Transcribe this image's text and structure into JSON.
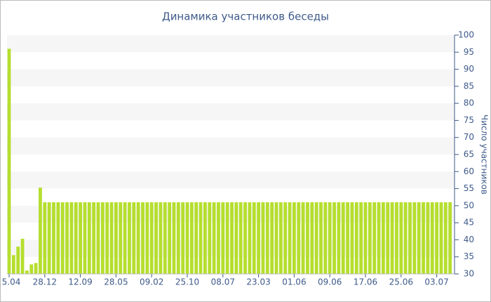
{
  "chart_data": {
    "type": "bar",
    "title": "Динамика участников беседы",
    "y_label": "Число участников",
    "categories": [
      "5.04",
      null,
      null,
      null,
      null,
      null,
      null,
      null,
      "28.12",
      null,
      null,
      null,
      null,
      null,
      null,
      null,
      "12.09",
      null,
      null,
      null,
      null,
      null,
      null,
      null,
      "28.05",
      null,
      null,
      null,
      null,
      null,
      null,
      null,
      "09.02",
      null,
      null,
      null,
      null,
      null,
      null,
      null,
      "25.10",
      null,
      null,
      null,
      null,
      null,
      null,
      null,
      "08.07",
      null,
      null,
      null,
      null,
      null,
      null,
      null,
      "23.03",
      null,
      null,
      null,
      null,
      null,
      null,
      null,
      "01.06",
      null,
      null,
      null,
      null,
      null,
      null,
      null,
      "09.06",
      null,
      null,
      null,
      null,
      null,
      null,
      null,
      "17.06",
      null,
      null,
      null,
      null,
      null,
      null,
      null,
      "25.06",
      null,
      null,
      null,
      null,
      null,
      null,
      null,
      "03.07",
      null,
      null,
      null
    ],
    "values": [
      96,
      35.5,
      38,
      40.3,
      31,
      32.8,
      33.2,
      55.3,
      51,
      51,
      51,
      51,
      51,
      51,
      51,
      51,
      51,
      51,
      51,
      51,
      51,
      51,
      51,
      51,
      51,
      51,
      51,
      51,
      51,
      51,
      51,
      51,
      51,
      51,
      51,
      51,
      51,
      51,
      51,
      51,
      51,
      51,
      51,
      51,
      51,
      51,
      51,
      51,
      51,
      51,
      51,
      51,
      51,
      51,
      51,
      51,
      51,
      51,
      51,
      51,
      51,
      51,
      51,
      51,
      51,
      51,
      51,
      51,
      51,
      51,
      51,
      51,
      51,
      51,
      51,
      51,
      51,
      51,
      51,
      51,
      51,
      51,
      51,
      51,
      51,
      51,
      51,
      51,
      51,
      51,
      51,
      51,
      51,
      51,
      51,
      51,
      51,
      51,
      51,
      51
    ],
    "color": "#b5de2e",
    "ylim": [
      30,
      100
    ],
    "yticks": [
      30,
      35,
      40,
      45,
      50,
      55,
      60,
      65,
      70,
      75,
      80,
      85,
      90,
      95,
      100
    ],
    "grid": "bands",
    "y_axis_side": "right"
  }
}
